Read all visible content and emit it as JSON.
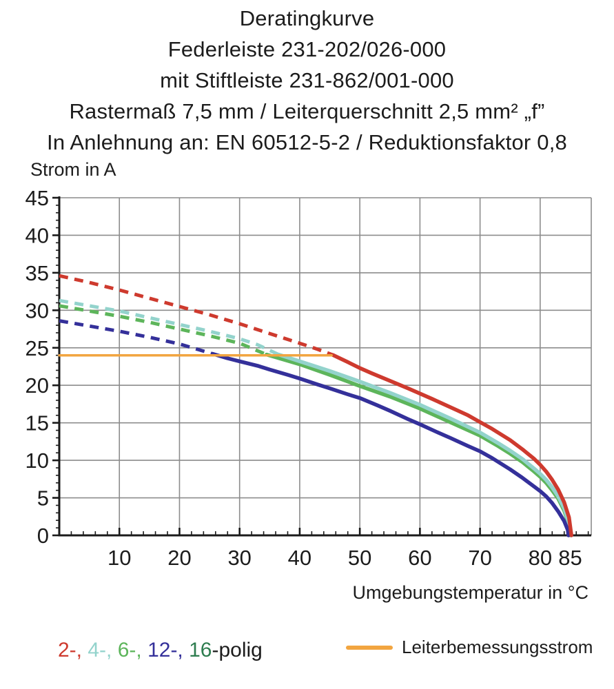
{
  "title": {
    "lines": [
      "Deratingkurve",
      "Federleiste 231-202/026-000",
      "mit Stiftleiste 231-862/001-000",
      "Rastermaß 7,5 mm / Leiterquerschnitt 2,5 mm² „f”",
      "In Anlehnung an: EN 60512-5-2 / Reduktionsfaktor 0,8"
    ]
  },
  "legend": {
    "poles": {
      "segments": [
        {
          "text": "2-,",
          "color": "#ce3a2e"
        },
        {
          "text": " 4-,",
          "color": "#93d3cc"
        },
        {
          "text": " 6-,",
          "color": "#5db55b"
        },
        {
          "text": " 12-,",
          "color": "#34309a"
        },
        {
          "text": " 16",
          "color": "#2e7d4f"
        },
        {
          "text": "-polig",
          "color": "#1c1c1c"
        }
      ]
    },
    "rated": {
      "label": "Leiterbemessungsstrom",
      "color": "#f2a540"
    }
  },
  "chart_data": {
    "type": "line",
    "title": "Deratingkurve",
    "xlabel": "Umgebungstemperatur in °C",
    "ylabel": "Strom in A",
    "xlim": [
      0,
      88.5
    ],
    "ylim": [
      0,
      45
    ],
    "x_major_ticks": [
      10,
      20,
      30,
      40,
      50,
      60,
      70,
      80,
      85
    ],
    "x_gridlines": [
      10,
      20,
      30,
      40,
      50,
      60,
      70,
      80
    ],
    "y_major_ticks": [
      0,
      5,
      10,
      15,
      20,
      25,
      30,
      35,
      40,
      45
    ],
    "y_gridlines": [
      5,
      10,
      15,
      20,
      25,
      30,
      35,
      40,
      45
    ],
    "x_minor_step": 2,
    "y_minor_step": 1,
    "grid": true,
    "grid_color": "#8c8c8c",
    "axis_color": "#1a1a1a",
    "legend_position": "bottom",
    "rated_current_A": 24,
    "series": [
      {
        "name": "6-polig",
        "color": "#5db55b",
        "dashed_points": [
          [
            0,
            30.6
          ],
          [
            5,
            29.9
          ],
          [
            10,
            29.2
          ],
          [
            15,
            28.4
          ],
          [
            20,
            27.5
          ],
          [
            25,
            26.6
          ],
          [
            30,
            25.6
          ],
          [
            34.5,
            24.1
          ]
        ],
        "solid_points": [
          [
            34.5,
            24.1
          ],
          [
            40,
            22.8
          ],
          [
            45,
            21.4
          ],
          [
            50,
            19.9
          ],
          [
            55,
            18.5
          ],
          [
            60,
            16.9
          ],
          [
            65,
            15.1
          ],
          [
            70,
            13.3
          ],
          [
            73,
            11.9
          ],
          [
            75,
            10.9
          ],
          [
            77,
            9.8
          ],
          [
            79,
            8.5
          ],
          [
            80,
            7.8
          ],
          [
            81,
            7.0
          ],
          [
            82,
            6.0
          ],
          [
            83,
            4.9
          ],
          [
            84,
            3.3
          ],
          [
            84.8,
            1.4
          ],
          [
            85.0,
            0
          ]
        ]
      },
      {
        "name": "4-polig",
        "color": "#93d3cc",
        "dashed_points": [
          [
            0,
            31.3
          ],
          [
            5,
            30.6
          ],
          [
            10,
            29.9
          ],
          [
            15,
            29.0
          ],
          [
            20,
            28.1
          ],
          [
            25,
            27.2
          ],
          [
            30,
            26.2
          ],
          [
            33,
            25.4
          ],
          [
            36.5,
            24.1
          ]
        ],
        "solid_points": [
          [
            36.5,
            24.1
          ],
          [
            40,
            23.2
          ],
          [
            45,
            21.9
          ],
          [
            50,
            20.5
          ],
          [
            55,
            19.0
          ],
          [
            60,
            17.4
          ],
          [
            65,
            15.6
          ],
          [
            70,
            13.7
          ],
          [
            73,
            12.3
          ],
          [
            75,
            11.3
          ],
          [
            77,
            10.2
          ],
          [
            79,
            8.9
          ],
          [
            80,
            8.2
          ],
          [
            81,
            7.4
          ],
          [
            82,
            6.4
          ],
          [
            83,
            5.2
          ],
          [
            84,
            3.6
          ],
          [
            84.8,
            1.6
          ],
          [
            85.1,
            0
          ]
        ]
      },
      {
        "name": "12-polig",
        "color": "#34309a",
        "dashed_points": [
          [
            0,
            28.6
          ],
          [
            5,
            27.9
          ],
          [
            10,
            27.2
          ],
          [
            15,
            26.4
          ],
          [
            20,
            25.5
          ],
          [
            23,
            24.8
          ],
          [
            25.5,
            24.2
          ]
        ],
        "solid_points": [
          [
            25.5,
            24.2
          ],
          [
            28,
            23.6
          ],
          [
            30,
            23.2
          ],
          [
            33,
            22.6
          ],
          [
            35,
            22.1
          ],
          [
            38,
            21.4
          ],
          [
            40,
            20.9
          ],
          [
            43,
            20.1
          ],
          [
            45,
            19.6
          ],
          [
            48,
            18.8
          ],
          [
            50,
            18.3
          ],
          [
            53,
            17.3
          ],
          [
            55,
            16.6
          ],
          [
            58,
            15.5
          ],
          [
            60,
            14.8
          ],
          [
            63,
            13.7
          ],
          [
            65,
            13.0
          ],
          [
            68,
            11.9
          ],
          [
            70,
            11.2
          ],
          [
            72,
            10.3
          ],
          [
            75,
            8.8
          ],
          [
            77,
            7.7
          ],
          [
            79,
            6.5
          ],
          [
            80,
            5.9
          ],
          [
            81,
            5.2
          ],
          [
            82,
            4.3
          ],
          [
            83,
            3.2
          ],
          [
            84,
            1.9
          ],
          [
            84.6,
            0.7
          ],
          [
            84.7,
            0
          ]
        ]
      },
      {
        "name": "2-polig",
        "color": "#ce3a2e",
        "dashed_points": [
          [
            0,
            34.6
          ],
          [
            5,
            33.7
          ],
          [
            10,
            32.7
          ],
          [
            15,
            31.6
          ],
          [
            20,
            30.5
          ],
          [
            25,
            29.4
          ],
          [
            30,
            28.2
          ],
          [
            35,
            26.9
          ],
          [
            40,
            25.6
          ],
          [
            43,
            24.8
          ],
          [
            45.5,
            24.05
          ]
        ],
        "solid_points": [
          [
            45.5,
            24.05
          ],
          [
            48,
            23.1
          ],
          [
            50,
            22.3
          ],
          [
            52,
            21.6
          ],
          [
            55,
            20.6
          ],
          [
            58,
            19.6
          ],
          [
            60,
            18.9
          ],
          [
            62,
            18.2
          ],
          [
            65,
            17.1
          ],
          [
            68,
            16.0
          ],
          [
            70,
            15.1
          ],
          [
            72,
            14.2
          ],
          [
            75,
            12.7
          ],
          [
            77,
            11.5
          ],
          [
            79,
            10.2
          ],
          [
            80,
            9.4
          ],
          [
            81,
            8.5
          ],
          [
            82,
            7.4
          ],
          [
            83,
            6.1
          ],
          [
            84,
            4.4
          ],
          [
            84.8,
            2.4
          ],
          [
            85.2,
            0
          ]
        ]
      },
      {
        "name": "Leiterbemessungsstrom",
        "color": "#f2a540",
        "solid_points": [
          [
            0,
            24
          ],
          [
            45.3,
            24
          ]
        ],
        "stroke_width": 3.5
      }
    ]
  }
}
